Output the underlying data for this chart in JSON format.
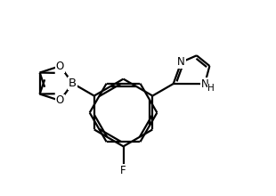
{
  "background_color": "#ffffff",
  "line_color": "#000000",
  "line_width": 1.6,
  "font_size": 8.5,
  "figsize": [
    3.1,
    2.2
  ],
  "dpi": 100,
  "xlim": [
    -3.5,
    4.5
  ],
  "ylim": [
    -2.8,
    3.8
  ]
}
